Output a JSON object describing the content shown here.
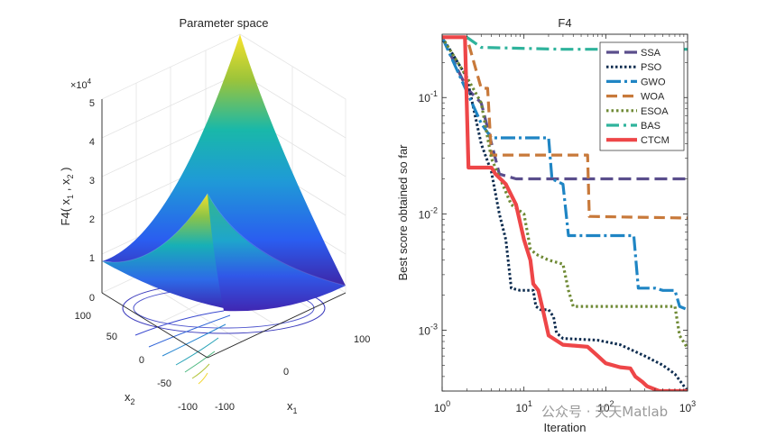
{
  "chart_data": [
    {
      "type": "surface3d",
      "title": "Parameter space",
      "zlabel": "F4( x_1 , x_2 )",
      "zlabel_parts": [
        "F4( x",
        "1",
        " , x",
        "2",
        " )"
      ],
      "xlabel": "x",
      "xlabel_sub": "1",
      "ylabel": "x",
      "ylabel_sub": "2",
      "x_ticks": [
        "-100",
        "0",
        "100"
      ],
      "y_ticks": [
        "-100",
        "-50",
        "0",
        "50",
        "100"
      ],
      "z_ticks": [
        "0",
        "1",
        "2",
        "3",
        "4",
        "5"
      ],
      "z_multiplier": "×10",
      "z_multiplier_exp": "4",
      "xlim": [
        -100,
        100
      ],
      "ylim": [
        -100,
        100
      ],
      "zlim": [
        0,
        50000
      ],
      "grid": true
    },
    {
      "type": "line",
      "title": "F4",
      "xlabel": "Iteration",
      "ylabel": "Best score obtained so far",
      "xscale": "log",
      "yscale": "log",
      "xlim": [
        1,
        1000
      ],
      "ylim": [
        0.0003,
        0.35
      ],
      "x_ticks": [
        {
          "base": "10",
          "exp": "0"
        },
        {
          "base": "10",
          "exp": "1"
        },
        {
          "base": "10",
          "exp": "2"
        },
        {
          "base": "10",
          "exp": "3"
        }
      ],
      "y_ticks": [
        {
          "base": "10",
          "exp": "-3"
        },
        {
          "base": "10",
          "exp": "-2"
        },
        {
          "base": "10",
          "exp": "-1"
        }
      ],
      "legend_position": "top-right",
      "series": [
        {
          "name": "SSA",
          "color": "#5a4e8c",
          "dash": "14 6",
          "width": 3.2,
          "points": [
            [
              1,
              0.33
            ],
            [
              2,
              0.12
            ],
            [
              3,
              0.09
            ],
            [
              5,
              0.022
            ],
            [
              8,
              0.02
            ],
            [
              1000,
              0.02
            ]
          ]
        },
        {
          "name": "PSO",
          "color": "#0d2c4f",
          "dash": "2.5 2.5",
          "width": 3,
          "points": [
            [
              1,
              0.33
            ],
            [
              2,
              0.15
            ],
            [
              3,
              0.04
            ],
            [
              4,
              0.023
            ],
            [
              5,
              0.01
            ],
            [
              6,
              0.006
            ],
            [
              7,
              0.0023
            ],
            [
              9,
              0.0022
            ],
            [
              13,
              0.0022
            ],
            [
              14,
              0.0016
            ],
            [
              16,
              0.0015
            ],
            [
              20,
              0.0015
            ],
            [
              23,
              0.0013
            ],
            [
              25,
              0.00095
            ],
            [
              30,
              0.00085
            ],
            [
              80,
              0.00082
            ],
            [
              150,
              0.00075
            ],
            [
              300,
              0.0006
            ],
            [
              500,
              0.0005
            ],
            [
              700,
              0.00042
            ],
            [
              1000,
              0.0003
            ]
          ]
        },
        {
          "name": "GWO",
          "color": "#1f85c4",
          "dash": "16 4 3 4",
          "width": 3.2,
          "points": [
            [
              1,
              0.33
            ],
            [
              3,
              0.06
            ],
            [
              4,
              0.045
            ],
            [
              20,
              0.045
            ],
            [
              22,
              0.02
            ],
            [
              30,
              0.018
            ],
            [
              35,
              0.0065
            ],
            [
              220,
              0.0065
            ],
            [
              250,
              0.0023
            ],
            [
              400,
              0.0023
            ],
            [
              500,
              0.0022
            ],
            [
              700,
              0.0022
            ],
            [
              800,
              0.0016
            ],
            [
              1000,
              0.0015
            ]
          ]
        },
        {
          "name": "WOA",
          "color": "#c8793a",
          "dash": "12 6",
          "width": 3.2,
          "points": [
            [
              1,
              0.33
            ],
            [
              2,
              0.33
            ],
            [
              3,
              0.12
            ],
            [
              3.6,
              0.12
            ],
            [
              4,
              0.032
            ],
            [
              12,
              0.032
            ],
            [
              60,
              0.032
            ],
            [
              63,
              0.0095
            ],
            [
              1000,
              0.0092
            ]
          ]
        },
        {
          "name": "ESOA",
          "color": "#6f8a35",
          "dash": "2.5 3",
          "width": 3.2,
          "points": [
            [
              1,
              0.33
            ],
            [
              2,
              0.15
            ],
            [
              3,
              0.09
            ],
            [
              4,
              0.03
            ],
            [
              7,
              0.012
            ],
            [
              10,
              0.01
            ],
            [
              12,
              0.005
            ],
            [
              14,
              0.0045
            ],
            [
              20,
              0.004
            ],
            [
              30,
              0.0037
            ],
            [
              35,
              0.0022
            ],
            [
              40,
              0.0016
            ],
            [
              700,
              0.0016
            ],
            [
              800,
              0.0009
            ],
            [
              1000,
              0.0007
            ]
          ]
        },
        {
          "name": "BAS",
          "color": "#2fb39c",
          "dash": "14 5 3 5",
          "width": 3.2,
          "points": [
            [
              1,
              0.33
            ],
            [
              2,
              0.33
            ],
            [
              3,
              0.27
            ],
            [
              30,
              0.26
            ],
            [
              1000,
              0.26
            ]
          ]
        },
        {
          "name": "CTCM",
          "color": "#ee4648",
          "dash": "",
          "width": 4.2,
          "points": [
            [
              1,
              0.33
            ],
            [
              1.9,
              0.33
            ],
            [
              2.1,
              0.025
            ],
            [
              4,
              0.025
            ],
            [
              4.5,
              0.022
            ],
            [
              6,
              0.018
            ],
            [
              8,
              0.012
            ],
            [
              10,
              0.006
            ],
            [
              12,
              0.004
            ],
            [
              13,
              0.0025
            ],
            [
              15,
              0.0022
            ],
            [
              17,
              0.0015
            ],
            [
              20,
              0.0009
            ],
            [
              30,
              0.00075
            ],
            [
              60,
              0.00072
            ],
            [
              80,
              0.0006
            ],
            [
              100,
              0.00052
            ],
            [
              150,
              0.00048
            ],
            [
              200,
              0.00047
            ],
            [
              230,
              0.0004
            ],
            [
              280,
              0.00036
            ],
            [
              320,
              0.00033
            ],
            [
              450,
              0.0003
            ],
            [
              1000,
              0.0003
            ]
          ]
        }
      ]
    }
  ],
  "watermark": "公众号 · 天天Matlab"
}
